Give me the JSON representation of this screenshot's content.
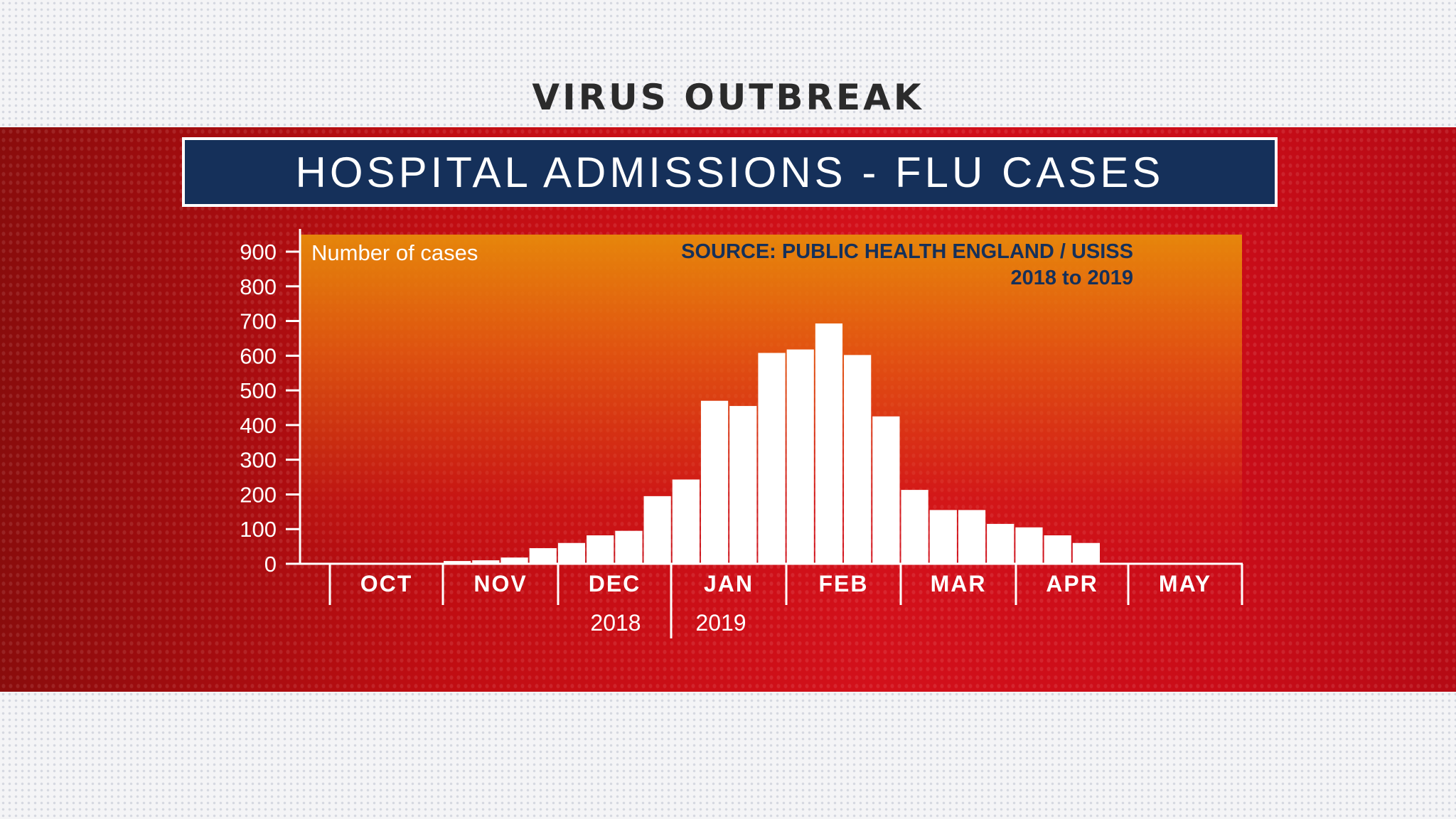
{
  "header": {
    "kicker": "VIRUS OUTBREAK",
    "title": "HOSPITAL ADMISSIONS - FLU CASES"
  },
  "colors": {
    "band": "#c00d12",
    "title_box": "#15305a",
    "bars": "#ffffff",
    "source_text": "#15305a",
    "panel_gradient_top": "#e88c0a"
  },
  "chart_data": {
    "type": "bar",
    "ylabel": "Number of cases",
    "source": "SOURCE: PUBLIC HEALTH ENGLAND / USISS",
    "period": "2018 to 2019",
    "ylim": [
      0,
      900
    ],
    "yticks": [
      "0",
      "100",
      "200",
      "300",
      "400",
      "500",
      "600",
      "700",
      "800",
      "900"
    ],
    "months": [
      "OCT",
      "NOV",
      "DEC",
      "JAN",
      "FEB",
      "MAR",
      "APR",
      "MAY"
    ],
    "years": [
      "2018",
      "2019"
    ],
    "grid": false,
    "values": [
      8,
      10,
      18,
      45,
      60,
      82,
      95,
      195,
      243,
      470,
      455,
      608,
      618,
      693,
      602,
      425,
      213,
      155,
      155,
      115,
      105,
      82,
      60
    ]
  }
}
